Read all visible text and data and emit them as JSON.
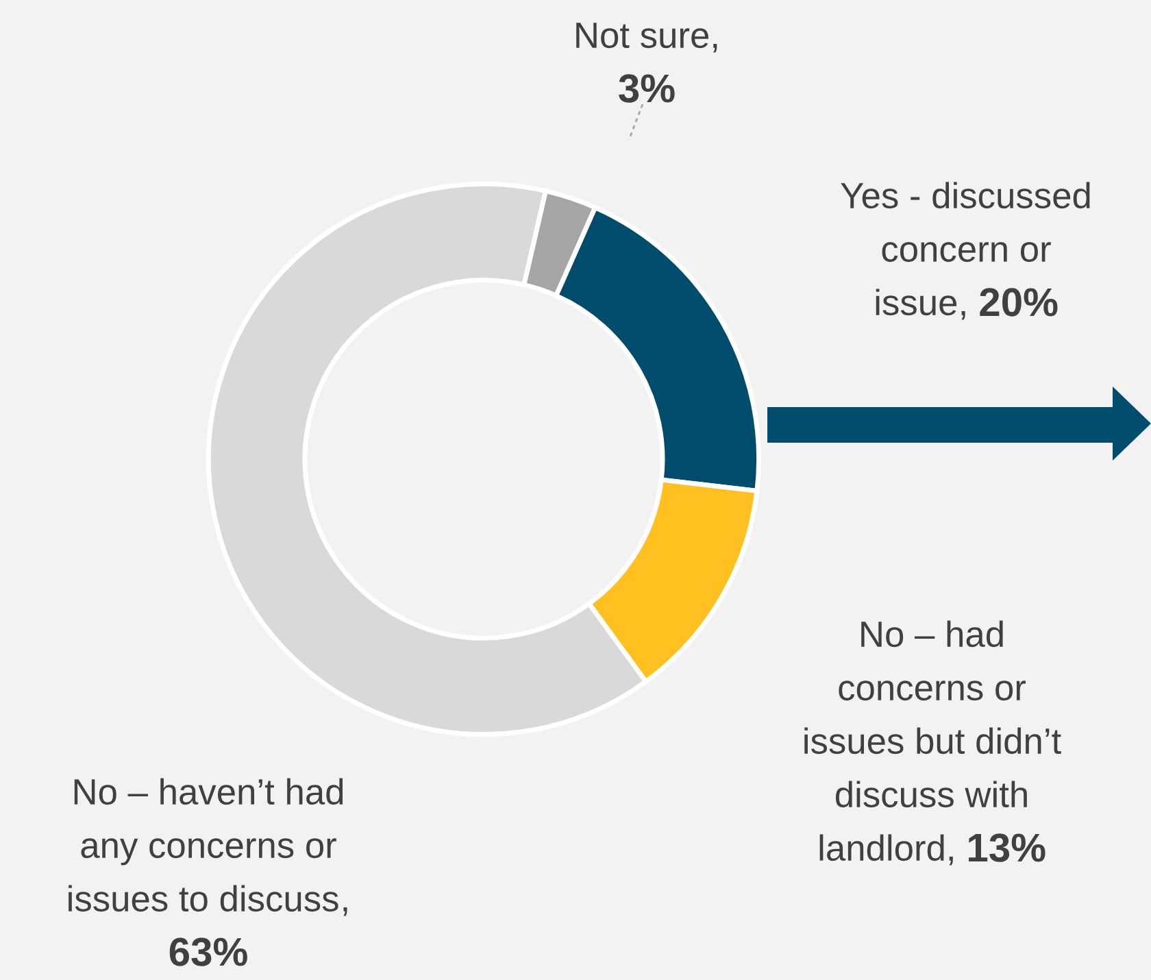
{
  "chart_data": {
    "type": "donut",
    "categories": [
      "Not sure",
      "Yes - discussed\nconcern or\nissue",
      "No – had\nconcerns or\nissues but didn’t\ndiscuss with\nlandlord",
      "No – haven’t had\nany concerns or\nissues to discuss"
    ],
    "values": [
      3,
      20,
      13,
      63
    ],
    "value_labels": [
      "3%",
      "20%",
      "13%",
      "63%"
    ],
    "colors": [
      "#a6a6a6",
      "#004c6d",
      "#ffc020",
      "#d9d9d9"
    ],
    "annotations": [
      ",",
      ",",
      ",",
      ","
    ]
  }
}
